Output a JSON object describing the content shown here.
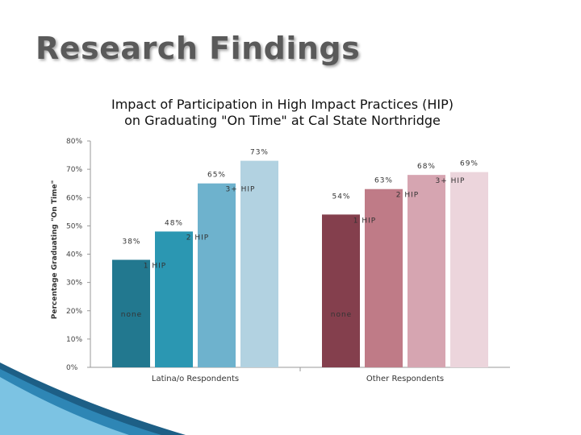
{
  "slide": {
    "title": "Research Findings"
  },
  "chart_data": {
    "type": "bar",
    "title_lines": [
      "Impact of Participation in High Impact Practices (HIP)",
      "on Graduating \"On Time\" at Cal State Northridge"
    ],
    "ylabel": "Percentage Graduating \"On Time\"",
    "ylim": [
      0,
      80
    ],
    "yticks": [
      0,
      10,
      20,
      30,
      40,
      50,
      60,
      70,
      80
    ],
    "ytick_labels": [
      "0%",
      "10%",
      "20%",
      "30%",
      "40%",
      "50%",
      "60%",
      "70%",
      "80%"
    ],
    "categories": [
      "Latina/o Respondents",
      "Other Respondents"
    ],
    "series": [
      {
        "name": "none",
        "values": [
          38,
          54
        ],
        "value_labels": [
          "38%",
          "54%"
        ],
        "colors": [
          "#22788f",
          "#843f4d"
        ]
      },
      {
        "name": "1 HIP",
        "values": [
          48,
          63
        ],
        "value_labels": [
          "48%",
          "63%"
        ],
        "colors": [
          "#2b97b2",
          "#bf7b87"
        ]
      },
      {
        "name": "2 HIP",
        "values": [
          65,
          68
        ],
        "value_labels": [
          "65%",
          "68%"
        ],
        "colors": [
          "#6eb2cd",
          "#d6a5b1"
        ]
      },
      {
        "name": "3+ HIP",
        "values": [
          73,
          69
        ],
        "value_labels": [
          "73%",
          "69%"
        ],
        "colors": [
          "#b2d2e1",
          "#ecd5dc"
        ]
      }
    ]
  }
}
